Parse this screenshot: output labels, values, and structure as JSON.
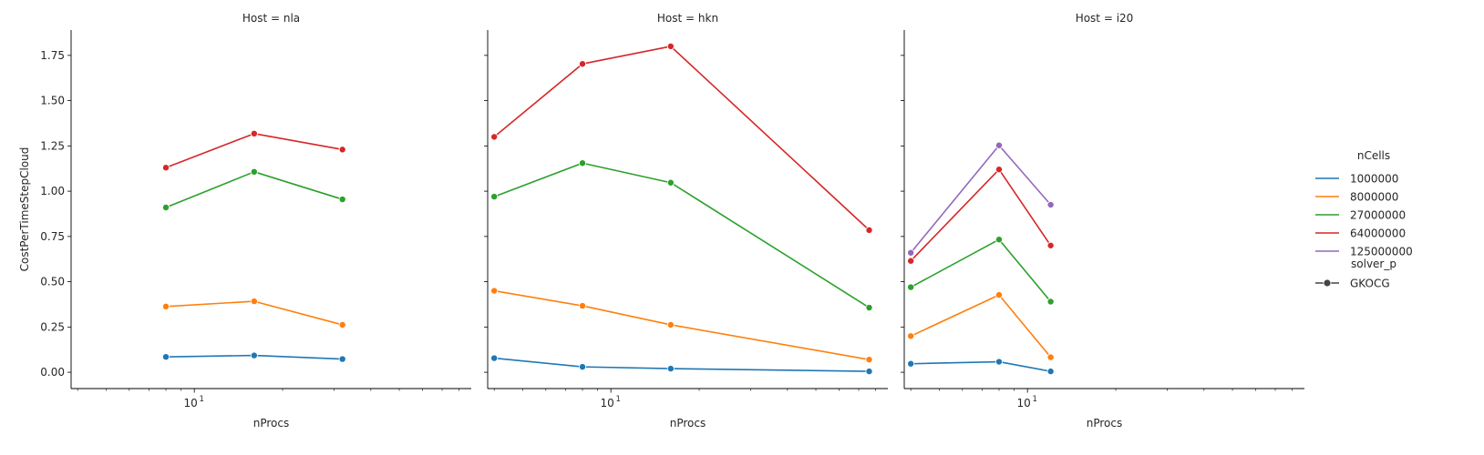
{
  "chart_data": {
    "type": "line",
    "x_scale": "log",
    "xlim": [
      3.8,
      88
    ],
    "ylim": [
      -0.09,
      1.89
    ],
    "y_ticks": [
      0.0,
      0.25,
      0.5,
      0.75,
      1.0,
      1.25,
      1.5,
      1.75
    ],
    "y_tick_labels": [
      "0.00",
      "0.25",
      "0.50",
      "0.75",
      "1.00",
      "1.25",
      "1.50",
      "1.75"
    ],
    "x_major_tick_label": "10",
    "x_major_tick_exp": "1",
    "xlabel": "nProcs",
    "ylabel": "CostPerTimeStepCloud",
    "sharey": true,
    "legend": {
      "placement": "right",
      "hue_title": "nCells",
      "style_title": "solver_p",
      "style_entries": [
        "GKOCG"
      ]
    },
    "series_meta": [
      {
        "name": "1000000",
        "color": "#1f77b4"
      },
      {
        "name": "8000000",
        "color": "#ff7f0e"
      },
      {
        "name": "27000000",
        "color": "#2ca02c"
      },
      {
        "name": "64000000",
        "color": "#d62728"
      },
      {
        "name": "125000000",
        "color": "#9467bd"
      }
    ],
    "panels": [
      {
        "title": "Host = nla",
        "series": [
          {
            "name": "1000000",
            "x": [
              8,
              16,
              32
            ],
            "y": [
              0.085,
              0.093,
              0.073
            ]
          },
          {
            "name": "8000000",
            "x": [
              8,
              16,
              32
            ],
            "y": [
              0.363,
              0.392,
              0.262
            ]
          },
          {
            "name": "27000000",
            "x": [
              8,
              16,
              32
            ],
            "y": [
              0.91,
              1.107,
              0.955
            ]
          },
          {
            "name": "64000000",
            "x": [
              8,
              16,
              32
            ],
            "y": [
              1.13,
              1.318,
              1.23
            ]
          }
        ]
      },
      {
        "title": "Host = hkn",
        "series": [
          {
            "name": "1000000",
            "x": [
              4,
              8,
              16,
              76
            ],
            "y": [
              0.078,
              0.03,
              0.02,
              0.005
            ]
          },
          {
            "name": "8000000",
            "x": [
              4,
              8,
              16,
              76
            ],
            "y": [
              0.45,
              0.367,
              0.262,
              0.07
            ]
          },
          {
            "name": "27000000",
            "x": [
              4,
              8,
              16,
              76
            ],
            "y": [
              0.97,
              1.155,
              1.047,
              0.357
            ]
          },
          {
            "name": "64000000",
            "x": [
              4,
              8,
              16,
              76
            ],
            "y": [
              1.3,
              1.703,
              1.8,
              0.785
            ]
          }
        ]
      },
      {
        "title": "Host = i20",
        "series": [
          {
            "name": "1000000",
            "x": [
              4,
              8,
              12
            ],
            "y": [
              0.047,
              0.058,
              0.005
            ]
          },
          {
            "name": "8000000",
            "x": [
              4,
              8,
              12
            ],
            "y": [
              0.2,
              0.427,
              0.083
            ]
          },
          {
            "name": "27000000",
            "x": [
              4,
              8,
              12
            ],
            "y": [
              0.47,
              0.733,
              0.39
            ]
          },
          {
            "name": "64000000",
            "x": [
              4,
              8,
              12
            ],
            "y": [
              0.615,
              1.12,
              0.7
            ]
          },
          {
            "name": "125000000",
            "x": [
              4,
              8,
              12
            ],
            "y": [
              0.66,
              1.253,
              0.925
            ]
          }
        ]
      }
    ]
  }
}
